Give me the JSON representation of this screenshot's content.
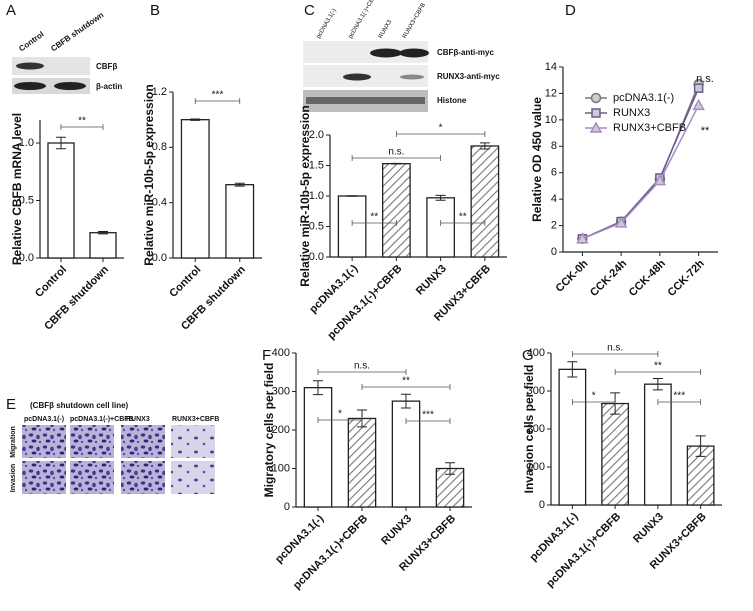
{
  "panel_labels": [
    "A",
    "B",
    "C",
    "D",
    "E",
    "F",
    "G"
  ],
  "blot_a": {
    "lanes": [
      "Control",
      "CBFB shutdown"
    ],
    "bands": [
      "CBFβ",
      "β-actin"
    ]
  },
  "blot_c": {
    "lanes": [
      "pcDNA3.1(-)",
      "pcDNA3.1(-)+CBFB",
      "RUNX3",
      "RUNX3+CBFB"
    ],
    "bands": [
      "CBFβ-anti-myc",
      "RUNX3-anti-myc",
      "Histone"
    ]
  },
  "images_e": {
    "title": "(CBFβ shutdown cell line)",
    "columns": [
      "pcDNA3.1(-)",
      "pcDNA3.1(-)+CBFB",
      "RUNX3",
      "RUNX3+CBFB"
    ],
    "rows": [
      "Migration",
      "Invasion"
    ]
  },
  "chart_data": [
    {
      "type": "bar",
      "y_label": "Relative CBFB mRNA level",
      "categories": [
        "Control",
        "CBFB shutdown"
      ],
      "values": [
        1.0,
        0.22
      ],
      "errors": [
        0.05,
        0.01
      ],
      "hatch": [
        false,
        false
      ],
      "ylim": [
        0,
        1.2
      ],
      "yticks": [
        {
          "value": 0,
          "label": "0.0"
        },
        0.5,
        {
          "value": 1,
          "label": "1.0"
        }
      ],
      "annotations": [
        "**"
      ]
    },
    {
      "type": "bar",
      "y_label": "Relative miR-10b-5p expression",
      "categories": [
        "Control",
        "CBFB shutdown"
      ],
      "values": [
        1.0,
        0.53
      ],
      "errors": [
        0.005,
        0.01
      ],
      "hatch": [
        false,
        false
      ],
      "ylim": [
        0,
        1.2
      ],
      "yticks": [
        {
          "value": 0,
          "label": "0.0"
        },
        0.4,
        0.8,
        1.2
      ],
      "annotations": [
        "***"
      ]
    },
    {
      "type": "bar",
      "y_label": "Relative miR-10b-5p expression",
      "categories": [
        "pcDNA3.1(-)",
        "pcDNA3.1(-)+CBFB",
        "RUNX3",
        "RUNX3+CBFB"
      ],
      "values": [
        1.0,
        1.53,
        0.97,
        1.82
      ],
      "errors": [
        0.005,
        0.005,
        0.04,
        0.05
      ],
      "hatch": [
        false,
        true,
        false,
        true
      ],
      "ylim": [
        0,
        2.0
      ],
      "yticks": [
        {
          "value": 0,
          "label": "0.0"
        },
        0.5,
        {
          "value": 1,
          "label": "1.0"
        },
        1.5,
        {
          "value": 2,
          "label": "2.0"
        }
      ],
      "annotations": [
        "n.s.",
        "*",
        "**",
        "**"
      ]
    },
    {
      "type": "line",
      "y_label": "Relative OD 450 value",
      "categories": [
        "CCK-0h",
        "CCK-24h",
        "CCK-48h",
        "CCK-72h"
      ],
      "series": [
        {
          "name": "pcDNA3.1(-)",
          "color": "#7a7a7a",
          "marker": "circle",
          "values": [
            1.0,
            2.3,
            5.5,
            12.7
          ]
        },
        {
          "name": "RUNX3",
          "color": "#6b5b8e",
          "marker": "square",
          "values": [
            1.0,
            2.3,
            5.6,
            12.4
          ]
        },
        {
          "name": "RUNX3+CBFB",
          "color": "#a88cc4",
          "marker": "triangle",
          "values": [
            1.0,
            2.2,
            5.4,
            11.1
          ]
        }
      ],
      "ylim": [
        0,
        14
      ],
      "yticks": [
        0,
        2,
        4,
        6,
        8,
        10,
        12,
        14
      ],
      "annotations": [
        "n.s.",
        "**"
      ]
    },
    {
      "type": "bar",
      "y_label": "Migratory cells per field",
      "categories": [
        "pcDNA3.1(-)",
        "pcDNA3.1(-)+CBFB",
        "RUNX3",
        "RUNX3+CBFB"
      ],
      "values": [
        310,
        230,
        275,
        100
      ],
      "errors": [
        18,
        22,
        18,
        15
      ],
      "hatch": [
        false,
        true,
        false,
        true
      ],
      "ylim": [
        0,
        400
      ],
      "yticks": [
        0,
        100,
        200,
        300,
        400
      ],
      "annotations": [
        "n.s.",
        "**",
        "*",
        "***"
      ]
    },
    {
      "type": "bar",
      "y_label": "Invasion cells per field",
      "categories": [
        "pcDNA3.1(-)",
        "pcDNA3.1(-)+CBFB",
        "RUNX3",
        "RUNX3+CBFB"
      ],
      "values": [
        357,
        267,
        318,
        155
      ],
      "errors": [
        20,
        28,
        15,
        27
      ],
      "hatch": [
        false,
        true,
        false,
        true
      ],
      "ylim": [
        0,
        400
      ],
      "yticks": [
        0,
        100,
        200,
        300,
        400
      ],
      "annotations": [
        "n.s.",
        "**",
        "*",
        "***"
      ]
    }
  ]
}
